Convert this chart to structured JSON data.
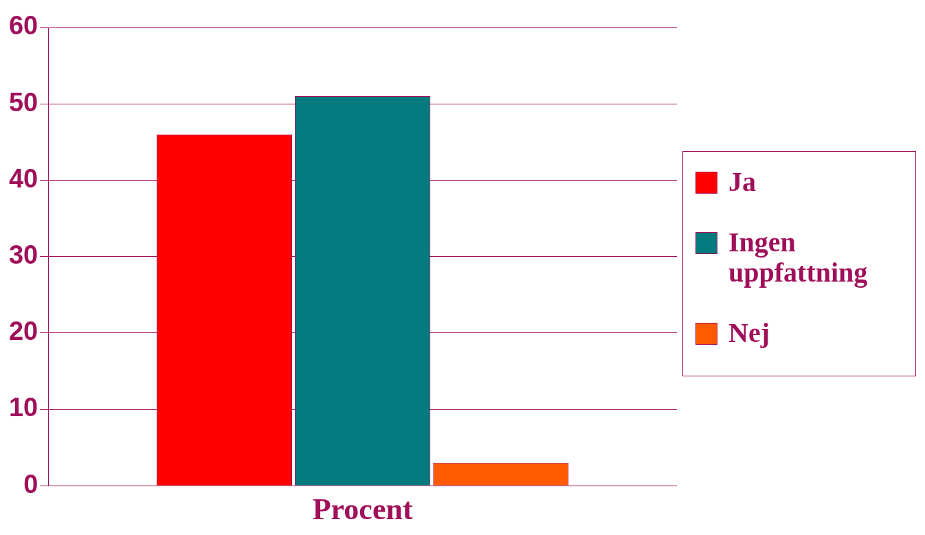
{
  "chart_data": {
    "type": "bar",
    "categories": [
      "Procent"
    ],
    "series": [
      {
        "name": "Ja",
        "color": "#ff0000",
        "values": [
          46
        ]
      },
      {
        "name": "Ingen uppfattning",
        "color": "#027a7e",
        "values": [
          51
        ]
      },
      {
        "name": "Nej",
        "color": "#ff5a00",
        "values": [
          3
        ]
      }
    ],
    "ylim": [
      0,
      60
    ],
    "yticks": [
      0,
      10,
      20,
      30,
      40,
      50,
      60
    ],
    "grid": "y",
    "legend": "right"
  }
}
